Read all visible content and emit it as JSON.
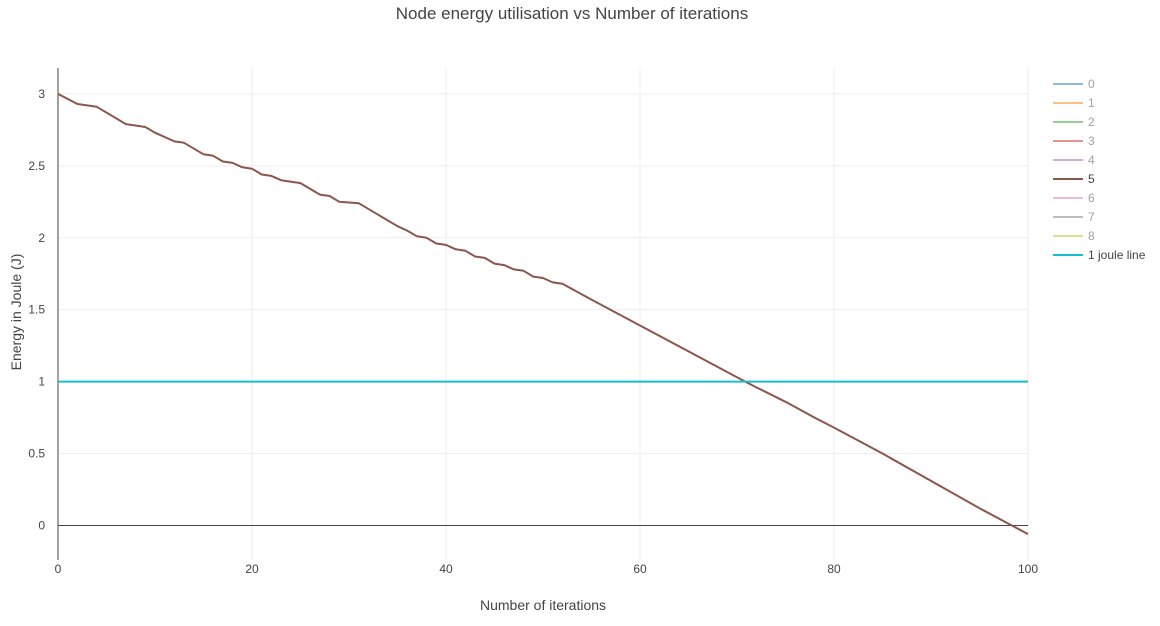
{
  "chart_data": {
    "type": "line",
    "title": "Node energy utilisation vs Number of iterations",
    "xlabel": "Number of iterations",
    "ylabel": "Energy in Joule (J)",
    "xlim": [
      0,
      100
    ],
    "ylim": [
      -0.24,
      3.18
    ],
    "x_ticks": [
      0,
      20,
      40,
      60,
      80,
      100
    ],
    "y_ticks": [
      0,
      0.5,
      1,
      1.5,
      2,
      2.5,
      3
    ],
    "x_tick_labels": [
      "0",
      "20",
      "40",
      "60",
      "80",
      "100"
    ],
    "y_tick_labels": [
      "0",
      "0.5",
      "1",
      "1.5",
      "2",
      "2.5",
      "3"
    ],
    "grid": true,
    "legend_position": "right",
    "series": [
      {
        "name": "0",
        "color": "#1f77b4",
        "visible": "legendonly"
      },
      {
        "name": "1",
        "color": "#ff7f0e",
        "visible": "legendonly"
      },
      {
        "name": "2",
        "color": "#2ca02c",
        "visible": "legendonly"
      },
      {
        "name": "3",
        "color": "#d62728",
        "visible": "legendonly"
      },
      {
        "name": "4",
        "color": "#9467bd",
        "visible": "legendonly"
      },
      {
        "name": "5",
        "color": "#8c564b",
        "visible": true,
        "x": [
          0,
          2,
          4,
          7,
          9,
          10,
          12,
          13,
          15,
          16,
          17,
          18,
          19,
          20,
          21,
          22,
          23,
          25,
          27,
          28,
          29,
          31,
          33,
          35,
          36,
          37,
          38,
          39,
          40,
          41,
          42,
          43,
          44,
          45,
          46,
          47,
          48,
          49,
          50,
          51,
          52,
          55,
          60,
          65,
          70,
          72,
          75,
          78,
          80,
          85,
          90,
          95,
          100
        ],
        "y": [
          3.0,
          2.93,
          2.91,
          2.79,
          2.77,
          2.73,
          2.67,
          2.66,
          2.58,
          2.57,
          2.53,
          2.52,
          2.49,
          2.48,
          2.44,
          2.43,
          2.4,
          2.38,
          2.3,
          2.29,
          2.25,
          2.24,
          2.16,
          2.08,
          2.05,
          2.01,
          2.0,
          1.96,
          1.95,
          1.92,
          1.91,
          1.87,
          1.86,
          1.82,
          1.81,
          1.78,
          1.77,
          1.73,
          1.72,
          1.69,
          1.68,
          1.57,
          1.39,
          1.21,
          1.03,
          0.96,
          0.86,
          0.75,
          0.68,
          0.5,
          0.31,
          0.12,
          -0.06
        ]
      },
      {
        "name": "6",
        "color": "#e377c2",
        "visible": "legendonly"
      },
      {
        "name": "7",
        "color": "#7f7f7f",
        "visible": "legendonly"
      },
      {
        "name": "8",
        "color": "#bcbd22",
        "visible": "legendonly"
      },
      {
        "name": "1 joule line",
        "color": "#17becf",
        "visible": true,
        "x": [
          0,
          100
        ],
        "y": [
          1,
          1
        ]
      }
    ]
  }
}
